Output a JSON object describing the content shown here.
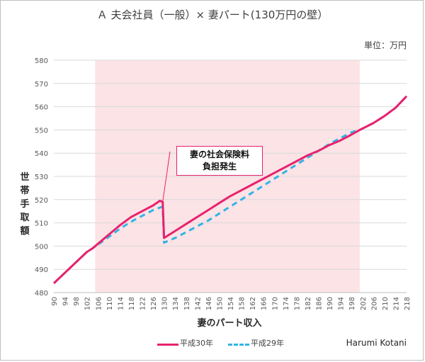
{
  "chart_data": {
    "type": "line",
    "title": "Ａ 夫会社員（一般）× 妻パート(130万円の壁）",
    "unit": "単位：万円",
    "xlabel": "妻のパート収入",
    "ylabel": "世帯手取額",
    "ylim": [
      480,
      580
    ],
    "yticks": [
      480,
      490,
      500,
      510,
      520,
      530,
      540,
      550,
      560,
      570,
      580
    ],
    "xlim": [
      90,
      218
    ],
    "xticks": [
      90,
      94,
      98,
      102,
      106,
      110,
      114,
      118,
      122,
      126,
      130,
      134,
      138,
      142,
      146,
      150,
      154,
      158,
      162,
      166,
      170,
      174,
      178,
      182,
      186,
      190,
      194,
      198,
      202,
      206,
      210,
      214,
      218
    ],
    "shaded_region": [
      105,
      201
    ],
    "shade_color": "#fbe3e6",
    "grid": "horizontal",
    "legend_position": "bottom",
    "series": [
      {
        "name": "平成30年",
        "color": "#e8226d",
        "dash": "solid",
        "points": [
          [
            90,
            484
          ],
          [
            98,
            493
          ],
          [
            102,
            497.5
          ],
          [
            104,
            499
          ],
          [
            110,
            505
          ],
          [
            114,
            509
          ],
          [
            118,
            512.5
          ],
          [
            122,
            515
          ],
          [
            126,
            517.5
          ],
          [
            128.5,
            519.5
          ],
          [
            129.5,
            519
          ],
          [
            130,
            503.5
          ],
          [
            134,
            506.5
          ],
          [
            138,
            509.5
          ],
          [
            142,
            512.5
          ],
          [
            146,
            515.5
          ],
          [
            150,
            518.5
          ],
          [
            154,
            521.5
          ],
          [
            158,
            524
          ],
          [
            162,
            526.5
          ],
          [
            166,
            529
          ],
          [
            170,
            531.5
          ],
          [
            174,
            534
          ],
          [
            178,
            536.5
          ],
          [
            182,
            539
          ],
          [
            186,
            541
          ],
          [
            190,
            543.5
          ],
          [
            194,
            545.5
          ],
          [
            198,
            548
          ],
          [
            201,
            550
          ],
          [
            206,
            553
          ],
          [
            210,
            556
          ],
          [
            214,
            559.5
          ],
          [
            218,
            564.5
          ]
        ]
      },
      {
        "name": "平成29年",
        "color": "#31b4e6",
        "dash": "dashed",
        "points": [
          [
            90,
            484
          ],
          [
            98,
            493
          ],
          [
            102,
            497.5
          ],
          [
            104,
            499
          ],
          [
            110,
            504
          ],
          [
            114,
            507.5
          ],
          [
            118,
            510.5
          ],
          [
            122,
            513
          ],
          [
            126,
            515.5
          ],
          [
            129.5,
            517
          ],
          [
            130,
            501.5
          ],
          [
            134,
            503.5
          ],
          [
            138,
            506
          ],
          [
            142,
            508.5
          ],
          [
            146,
            511
          ],
          [
            150,
            514
          ],
          [
            154,
            517
          ],
          [
            158,
            520
          ],
          [
            162,
            523
          ],
          [
            166,
            526
          ],
          [
            170,
            529
          ],
          [
            174,
            532
          ],
          [
            178,
            535
          ],
          [
            182,
            538
          ],
          [
            186,
            541
          ],
          [
            190,
            544
          ],
          [
            194,
            546.5
          ],
          [
            198,
            549
          ],
          [
            201,
            550
          ],
          [
            206,
            553
          ],
          [
            210,
            556
          ],
          [
            214,
            559.5
          ],
          [
            218,
            564.5
          ]
        ]
      }
    ],
    "annotation": {
      "lines": [
        "妻の社会保険料",
        "負担発生"
      ],
      "target": [
        129.5,
        519
      ]
    }
  },
  "credit": "Harumi Kotani"
}
